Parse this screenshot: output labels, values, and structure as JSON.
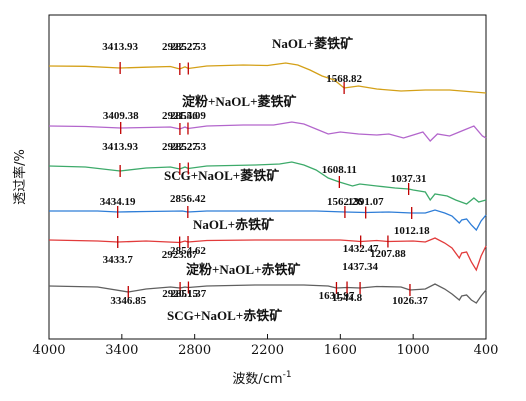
{
  "chart_data": {
    "type": "line",
    "xlabel": "波数/cm",
    "xlabel_sup": "-1",
    "ylabel": "透过率/%",
    "xlim": [
      4000,
      400
    ],
    "x_reversed": true,
    "xticks": [
      4000,
      3400,
      2800,
      2200,
      1600,
      1000,
      400
    ],
    "grid": false,
    "series": [
      {
        "name": "NaOL+菱铁矿",
        "color": "#d4a017",
        "baseline": 0.0,
        "points": [
          [
            4000,
            0
          ],
          [
            3700,
            0.3
          ],
          [
            3413.93,
            2
          ],
          [
            3200,
            1.2
          ],
          [
            3000,
            0.5
          ],
          [
            2922.27,
            3
          ],
          [
            2880,
            0.8
          ],
          [
            2852.53,
            2.5
          ],
          [
            2700,
            0
          ],
          [
            2400,
            -1
          ],
          [
            2200,
            -0.5
          ],
          [
            2050,
            -3
          ],
          [
            1950,
            -1
          ],
          [
            1850,
            4
          ],
          [
            1750,
            10
          ],
          [
            1650,
            14
          ],
          [
            1568.82,
            22
          ],
          [
            1450,
            20
          ],
          [
            1300,
            23
          ],
          [
            1100,
            25
          ],
          [
            900,
            24
          ],
          [
            700,
            24
          ],
          [
            500,
            26
          ],
          [
            400,
            27
          ]
        ],
        "peaks": [
          {
            "x": 3413.93,
            "label": "3413.93"
          },
          {
            "x": 2922.27,
            "label": "2922.27"
          },
          {
            "x": 2852.53,
            "label": "2852.53"
          },
          {
            "x": 1568.82,
            "label": "1568.82"
          }
        ]
      },
      {
        "name": "淀粉+NaOL+菱铁矿",
        "color": "#b366cc",
        "baseline": 0.0,
        "points": [
          [
            4000,
            0
          ],
          [
            3700,
            0.5
          ],
          [
            3409.38,
            2
          ],
          [
            3200,
            1.5
          ],
          [
            3000,
            1
          ],
          [
            2921.46,
            3
          ],
          [
            2880,
            1
          ],
          [
            2855.09,
            2.5
          ],
          [
            2700,
            0
          ],
          [
            2400,
            -1
          ],
          [
            2150,
            -1
          ],
          [
            2000,
            -4
          ],
          [
            1900,
            -2
          ],
          [
            1800,
            3
          ],
          [
            1700,
            8
          ],
          [
            1600,
            6
          ],
          [
            1450,
            8
          ],
          [
            1300,
            9
          ],
          [
            1200,
            8
          ],
          [
            1080,
            12
          ],
          [
            1000,
            9
          ],
          [
            920,
            6
          ],
          [
            860,
            15
          ],
          [
            800,
            8
          ],
          [
            700,
            10
          ],
          [
            600,
            5
          ],
          [
            500,
            0
          ],
          [
            430,
            10
          ],
          [
            400,
            12
          ]
        ],
        "peaks": [
          {
            "x": 3409.38,
            "label": "3409.38"
          },
          {
            "x": 2921.46,
            "label": "2921.46"
          },
          {
            "x": 2855.09,
            "label": "2855.09"
          }
        ]
      },
      {
        "name": "SCG+NaOL+菱铁矿",
        "color": "#3daa6a",
        "baseline": 0.0,
        "points": [
          [
            4000,
            0
          ],
          [
            3700,
            1
          ],
          [
            3413.93,
            5
          ],
          [
            3200,
            2
          ],
          [
            3000,
            1
          ],
          [
            2922.27,
            3
          ],
          [
            2880,
            1
          ],
          [
            2852.53,
            2.5
          ],
          [
            2700,
            0
          ],
          [
            2300,
            -1
          ],
          [
            2100,
            -2
          ],
          [
            2000,
            -4
          ],
          [
            1900,
            -1
          ],
          [
            1800,
            4
          ],
          [
            1700,
            12
          ],
          [
            1608.11,
            16
          ],
          [
            1500,
            20
          ],
          [
            1440,
            18
          ],
          [
            1300,
            20
          ],
          [
            1150,
            22
          ],
          [
            1037.31,
            23
          ],
          [
            1000,
            24
          ],
          [
            900,
            26
          ],
          [
            860,
            34
          ],
          [
            820,
            28
          ],
          [
            720,
            30
          ],
          [
            650,
            34
          ],
          [
            560,
            38
          ],
          [
            500,
            32
          ],
          [
            460,
            36
          ],
          [
            400,
            34
          ]
        ],
        "peaks": [
          {
            "x": 3413.93,
            "label": "3413.93"
          },
          {
            "x": 2922.27,
            "label": "2922.27"
          },
          {
            "x": 2852.53,
            "label": "2852.53"
          },
          {
            "x": 1608.11,
            "label": "1608.11"
          },
          {
            "x": 1037.31,
            "label": "1037.31"
          }
        ]
      },
      {
        "name": "NaOL+赤铁矿",
        "color": "#2e7dd7",
        "baseline": 0.0,
        "points": [
          [
            4000,
            0
          ],
          [
            3600,
            0
          ],
          [
            3434.19,
            1
          ],
          [
            3200,
            0.5
          ],
          [
            2900,
            0
          ],
          [
            2856.42,
            1
          ],
          [
            2700,
            0
          ],
          [
            2200,
            0
          ],
          [
            1800,
            0
          ],
          [
            1562.26,
            1
          ],
          [
            1391.07,
            1.5
          ],
          [
            1200,
            1
          ],
          [
            1012.18,
            2
          ],
          [
            900,
            2
          ],
          [
            820,
            -1
          ],
          [
            740,
            2
          ],
          [
            680,
            5
          ],
          [
            620,
            12
          ],
          [
            600,
            9
          ],
          [
            560,
            8
          ],
          [
            520,
            14
          ],
          [
            480,
            19
          ],
          [
            440,
            10
          ],
          [
            400,
            4
          ]
        ],
        "peaks": [
          {
            "x": 3434.19,
            "label": "3434.19"
          },
          {
            "x": 2856.42,
            "label": "2856.42"
          },
          {
            "x": 1562.26,
            "label": "1562.26"
          },
          {
            "x": 1391.07,
            "label": "1391.07"
          },
          {
            "x": 1012.18,
            "label": "1012.18"
          }
        ]
      },
      {
        "name": "淀粉+NaOL+赤铁矿",
        "color": "#e23b3b",
        "baseline": 0.0,
        "points": [
          [
            4000,
            0
          ],
          [
            3600,
            1
          ],
          [
            3433.7,
            2
          ],
          [
            3200,
            1
          ],
          [
            2923.67,
            2.5
          ],
          [
            2880,
            1
          ],
          [
            2854.62,
            2
          ],
          [
            2700,
            0.5
          ],
          [
            2300,
            0
          ],
          [
            1900,
            0
          ],
          [
            1600,
            0
          ],
          [
            1432.47,
            1.5
          ],
          [
            1300,
            0.5
          ],
          [
            1207.88,
            1.5
          ],
          [
            1000,
            1
          ],
          [
            900,
            2
          ],
          [
            820,
            -2
          ],
          [
            740,
            3
          ],
          [
            680,
            8
          ],
          [
            620,
            18
          ],
          [
            600,
            13
          ],
          [
            560,
            12
          ],
          [
            520,
            22
          ],
          [
            480,
            30
          ],
          [
            440,
            16
          ],
          [
            400,
            6
          ]
        ],
        "peaks": [
          {
            "x": 3433.7,
            "label": "3433.7"
          },
          {
            "x": 2923.67,
            "label": "2923.67"
          },
          {
            "x": 2854.62,
            "label": "2854.62"
          },
          {
            "x": 1432.47,
            "label": "1432.47"
          },
          {
            "x": 1207.88,
            "label": "1207.88"
          }
        ]
      },
      {
        "name": "SCG+NaOL+赤铁矿",
        "color": "#606060",
        "baseline": 0.0,
        "points": [
          [
            4000,
            0
          ],
          [
            3600,
            1
          ],
          [
            3346.85,
            6
          ],
          [
            3200,
            3
          ],
          [
            3000,
            1
          ],
          [
            2920.15,
            2
          ],
          [
            2880,
            1
          ],
          [
            2851.37,
            1.5
          ],
          [
            2700,
            0
          ],
          [
            2300,
            -1
          ],
          [
            1900,
            -1
          ],
          [
            1700,
            0
          ],
          [
            1631.97,
            2
          ],
          [
            1544.8,
            1.5
          ],
          [
            1437.34,
            2
          ],
          [
            1300,
            0.5
          ],
          [
            1100,
            1
          ],
          [
            1026.37,
            4
          ],
          [
            900,
            3
          ],
          [
            820,
            -2
          ],
          [
            740,
            3
          ],
          [
            680,
            8
          ],
          [
            620,
            14
          ],
          [
            600,
            10
          ],
          [
            560,
            9
          ],
          [
            520,
            14
          ],
          [
            480,
            17
          ],
          [
            440,
            10
          ],
          [
            400,
            4
          ]
        ],
        "peaks": [
          {
            "x": 3346.85,
            "label": "3346.85"
          },
          {
            "x": 2920.15,
            "label": "2920.15"
          },
          {
            "x": 2851.37,
            "label": "2851.37"
          },
          {
            "x": 1631.97,
            "label": "1631.97"
          },
          {
            "x": 1544.8,
            "label": "1544.8"
          },
          {
            "x": 1437.34,
            "label": "1437.34"
          },
          {
            "x": 1026.37,
            "label": "1026.37"
          }
        ]
      }
    ]
  }
}
